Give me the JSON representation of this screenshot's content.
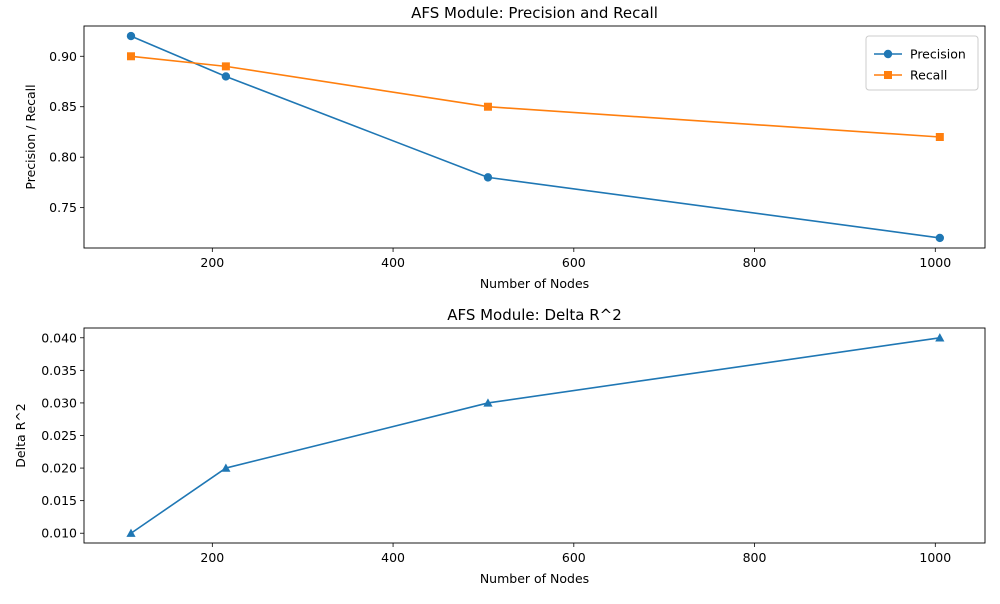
{
  "colors": {
    "blue": "#1f77b4",
    "orange": "#ff7f0e"
  },
  "chart_data": [
    {
      "type": "line",
      "title": "AFS Module: Precision and Recall",
      "xlabel": "Number of Nodes",
      "ylabel": "Precision / Recall",
      "xlim": [
        58,
        1055
      ],
      "ylim": [
        0.71,
        0.93
      ],
      "xticks": [
        200,
        400,
        600,
        800,
        1000
      ],
      "xtick_labels": [
        "200",
        "400",
        "600",
        "800",
        "1000"
      ],
      "yticks": [
        0.75,
        0.8,
        0.85,
        0.9
      ],
      "ytick_labels": [
        "0.75",
        "0.80",
        "0.85",
        "0.90"
      ],
      "legend_position": "top-right",
      "x": [
        110,
        215,
        505,
        1005
      ],
      "series": [
        {
          "name": "Precision",
          "values": [
            0.92,
            0.88,
            0.78,
            0.72
          ],
          "color": "#1f77b4",
          "marker": "circle"
        },
        {
          "name": "Recall",
          "values": [
            0.9,
            0.89,
            0.85,
            0.82
          ],
          "color": "#ff7f0e",
          "marker": "square"
        }
      ]
    },
    {
      "type": "line",
      "title": "AFS Module: Delta R^2",
      "xlabel": "Number of Nodes",
      "ylabel": "Delta R^2",
      "xlim": [
        58,
        1055
      ],
      "ylim": [
        0.0085,
        0.0415
      ],
      "xticks": [
        200,
        400,
        600,
        800,
        1000
      ],
      "xtick_labels": [
        "200",
        "400",
        "600",
        "800",
        "1000"
      ],
      "yticks": [
        0.01,
        0.015,
        0.02,
        0.025,
        0.03,
        0.035,
        0.04
      ],
      "ytick_labels": [
        "0.010",
        "0.015",
        "0.020",
        "0.025",
        "0.030",
        "0.035",
        "0.040"
      ],
      "x": [
        110,
        215,
        505,
        1005
      ],
      "series": [
        {
          "values": [
            0.01,
            0.02,
            0.03,
            0.04
          ],
          "color": "#1f77b4",
          "marker": "triangle"
        }
      ]
    }
  ]
}
